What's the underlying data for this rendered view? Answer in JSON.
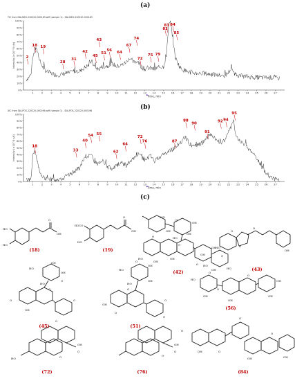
{
  "panel_letters": [
    "(a)",
    "(b)",
    "(c)"
  ],
  "chart_data": [
    {
      "panel": "(a)",
      "type": "line",
      "header": "TIC from IDA-NEG-220220-000183.wiff (sample 1) - IDA-NEG-220220-000183",
      "ylabel": "Intensity (×10^5 c/s)",
      "xlabel": "Time, min",
      "xlim": [
        0,
        28
      ],
      "ylim": [
        0,
        100
      ],
      "x_ticks": [
        "1",
        "2",
        "3",
        "4",
        "5",
        "6",
        "7",
        "8",
        "9",
        "10",
        "11",
        "12",
        "13",
        "14",
        "15",
        "16",
        "17",
        "18",
        "19",
        "20",
        "21",
        "22",
        "23",
        "24",
        "25",
        "26",
        "27"
      ],
      "y_ticks": [
        "0%",
        "10%",
        "20%",
        "30%",
        "40%",
        "50%",
        "60%",
        "70%",
        "80%",
        "90%",
        "100%"
      ],
      "baseline_trace": [
        [
          0.3,
          15
        ],
        [
          0.8,
          22
        ],
        [
          1.0,
          46
        ],
        [
          1.25,
          60
        ],
        [
          1.5,
          56
        ],
        [
          1.8,
          40
        ],
        [
          2.2,
          30
        ],
        [
          2.6,
          26
        ],
        [
          3.0,
          24
        ],
        [
          3.5,
          22
        ],
        [
          4.0,
          22
        ],
        [
          4.5,
          24
        ],
        [
          5.0,
          25
        ],
        [
          5.5,
          28
        ],
        [
          6.0,
          27
        ],
        [
          6.5,
          32
        ],
        [
          7.0,
          36
        ],
        [
          7.3,
          42
        ],
        [
          7.6,
          34
        ],
        [
          8.0,
          30
        ],
        [
          8.5,
          34
        ],
        [
          9.0,
          35
        ],
        [
          9.5,
          38
        ],
        [
          10.0,
          34
        ],
        [
          10.5,
          36
        ],
        [
          11.0,
          40
        ],
        [
          11.3,
          46
        ],
        [
          11.8,
          40
        ],
        [
          12.2,
          42
        ],
        [
          12.6,
          34
        ],
        [
          13.0,
          30
        ],
        [
          13.5,
          32
        ],
        [
          14.0,
          30
        ],
        [
          14.5,
          33
        ],
        [
          15.0,
          34
        ],
        [
          15.3,
          48
        ],
        [
          15.55,
          92
        ],
        [
          15.75,
          98
        ],
        [
          15.95,
          80
        ],
        [
          16.3,
          46
        ],
        [
          16.8,
          32
        ],
        [
          17.3,
          28
        ],
        [
          18.0,
          25
        ],
        [
          19.0,
          24
        ],
        [
          20.0,
          23
        ],
        [
          21.0,
          21
        ],
        [
          21.5,
          20
        ],
        [
          21.9,
          24
        ],
        [
          22.2,
          30
        ],
        [
          22.4,
          28
        ],
        [
          22.8,
          22
        ],
        [
          23.5,
          20
        ],
        [
          24.5,
          19
        ],
        [
          25.5,
          18
        ],
        [
          26.5,
          18
        ],
        [
          27.5,
          17
        ]
      ],
      "labelled_peaks": [
        {
          "label": "2",
          "x": 0.4,
          "y": 45
        },
        {
          "label": "18",
          "x": 1.2,
          "y": 62
        },
        {
          "label": "19",
          "x": 2.1,
          "y": 60
        },
        {
          "label": "28",
          "x": 4.2,
          "y": 38
        },
        {
          "label": "31",
          "x": 5.4,
          "y": 42
        },
        {
          "label": "42",
          "x": 6.6,
          "y": 53
        },
        {
          "label": "43",
          "x": 8.1,
          "y": 70
        },
        {
          "label": "45",
          "x": 7.7,
          "y": 47
        },
        {
          "label": "51",
          "x": 8.6,
          "y": 51
        },
        {
          "label": "56",
          "x": 9.2,
          "y": 55
        },
        {
          "label": "64",
          "x": 10.3,
          "y": 52
        },
        {
          "label": "67",
          "x": 11.3,
          "y": 62
        },
        {
          "label": "72",
          "x": 12.5,
          "y": 43
        },
        {
          "label": "74",
          "x": 12.1,
          "y": 72
        },
        {
          "label": "75",
          "x": 13.6,
          "y": 48
        },
        {
          "label": "79",
          "x": 14.4,
          "y": 49
        },
        {
          "label": "82",
          "x": 15.2,
          "y": 86
        },
        {
          "label": "83",
          "x": 15.35,
          "y": 91
        },
        {
          "label": "84",
          "x": 16.0,
          "y": 92
        },
        {
          "label": "85",
          "x": 16.4,
          "y": 80
        }
      ]
    },
    {
      "panel": "(b)",
      "type": "line",
      "header": "XIC from IDA-POS-220220-000196.wiff (sample 1) - IDA-POS-220220-000196",
      "ylabel": "Intensity (×10^5 c/s)",
      "xlabel": "Time, min",
      "xlim": [
        0,
        28
      ],
      "ylim": [
        0,
        100
      ],
      "x_ticks": [
        "1",
        "2",
        "3",
        "4",
        "5",
        "6",
        "7",
        "8",
        "9",
        "10",
        "11",
        "12",
        "13",
        "14",
        "15",
        "16",
        "17",
        "18",
        "19",
        "20",
        "21",
        "22",
        "23",
        "24",
        "25",
        "26",
        "27"
      ],
      "y_ticks": [
        "0%",
        "10%",
        "20%",
        "30%",
        "40%",
        "50%",
        "60%",
        "70%",
        "80%",
        "90%",
        "100%"
      ],
      "baseline_trace": [
        [
          0.3,
          2
        ],
        [
          0.8,
          4
        ],
        [
          1.0,
          38
        ],
        [
          1.2,
          46
        ],
        [
          1.5,
          28
        ],
        [
          1.9,
          8
        ],
        [
          2.5,
          3
        ],
        [
          3.0,
          2
        ],
        [
          3.5,
          3
        ],
        [
          4.0,
          4
        ],
        [
          4.5,
          7
        ],
        [
          5.0,
          10
        ],
        [
          5.5,
          16
        ],
        [
          6.0,
          20
        ],
        [
          6.4,
          30
        ],
        [
          6.8,
          38
        ],
        [
          7.2,
          40
        ],
        [
          7.6,
          30
        ],
        [
          8.0,
          26
        ],
        [
          8.5,
          30
        ],
        [
          9.0,
          22
        ],
        [
          9.5,
          20
        ],
        [
          10.0,
          24
        ],
        [
          10.5,
          28
        ],
        [
          11.0,
          24
        ],
        [
          11.5,
          30
        ],
        [
          12.0,
          36
        ],
        [
          12.4,
          42
        ],
        [
          12.8,
          30
        ],
        [
          13.2,
          34
        ],
        [
          13.6,
          38
        ],
        [
          14.0,
          30
        ],
        [
          14.5,
          36
        ],
        [
          15.0,
          40
        ],
        [
          15.5,
          44
        ],
        [
          16.0,
          48
        ],
        [
          16.5,
          55
        ],
        [
          17.0,
          58
        ],
        [
          17.4,
          66
        ],
        [
          17.8,
          56
        ],
        [
          18.3,
          52
        ],
        [
          18.7,
          54
        ],
        [
          19.2,
          58
        ],
        [
          19.6,
          64
        ],
        [
          20.0,
          70
        ],
        [
          20.4,
          66
        ],
        [
          20.8,
          60
        ],
        [
          21.2,
          58
        ],
        [
          21.6,
          62
        ],
        [
          22.0,
          72
        ],
        [
          22.3,
          84
        ],
        [
          22.5,
          94
        ],
        [
          22.7,
          72
        ],
        [
          23.0,
          62
        ],
        [
          23.5,
          58
        ],
        [
          24.0,
          50
        ],
        [
          24.5,
          44
        ],
        [
          25.0,
          36
        ],
        [
          25.5,
          22
        ],
        [
          26.0,
          12
        ],
        [
          26.5,
          6
        ],
        [
          27.0,
          4
        ],
        [
          27.5,
          3
        ]
      ],
      "labelled_peaks": [
        {
          "label": "18",
          "x": 1.2,
          "y": 50
        },
        {
          "label": "33",
          "x": 5.6,
          "y": 44
        },
        {
          "label": "40",
          "x": 6.6,
          "y": 58
        },
        {
          "label": "54",
          "x": 7.2,
          "y": 66
        },
        {
          "label": "55",
          "x": 8.1,
          "y": 68
        },
        {
          "label": "62",
          "x": 9.9,
          "y": 42
        },
        {
          "label": "64",
          "x": 10.9,
          "y": 53
        },
        {
          "label": "72",
          "x": 12.5,
          "y": 64
        },
        {
          "label": "76",
          "x": 13.0,
          "y": 57
        },
        {
          "label": "87",
          "x": 16.2,
          "y": 57
        },
        {
          "label": "88",
          "x": 17.4,
          "y": 88
        },
        {
          "label": "90",
          "x": 18.3,
          "y": 84
        },
        {
          "label": "91",
          "x": 19.7,
          "y": 71
        },
        {
          "label": "92",
          "x": 21.1,
          "y": 87
        },
        {
          "label": "94",
          "x": 21.7,
          "y": 89
        },
        {
          "label": "95",
          "x": 22.6,
          "y": 99
        }
      ]
    }
  ],
  "compounds": [
    {
      "id": "18",
      "label": "(18)"
    },
    {
      "id": "19",
      "label": "(19)"
    },
    {
      "id": "42",
      "label": "(42)"
    },
    {
      "id": "43",
      "label": "(43)"
    },
    {
      "id": "45",
      "label": "(45)"
    },
    {
      "id": "51",
      "label": "(51)"
    },
    {
      "id": "56",
      "label": "(56)"
    },
    {
      "id": "72",
      "label": "(72)"
    },
    {
      "id": "76",
      "label": "(76)"
    },
    {
      "id": "84",
      "label": "(84)"
    }
  ],
  "atom_labels": {
    "18": [
      "HO",
      "HO",
      "O",
      "OH"
    ],
    "19": [
      "H3CO",
      "HO",
      "O",
      "OH"
    ],
    "42": [
      "HO",
      "OH",
      "O",
      "OH",
      "HO",
      "OH",
      "O",
      "O",
      "OH",
      "OH",
      "HO",
      "OH",
      "O"
    ],
    "43": [
      "O",
      "O",
      "HO",
      "O",
      "O",
      "OH",
      "HO",
      "OH",
      "HO",
      "OH"
    ],
    "45": [
      "HO",
      "OH",
      "HO",
      "O",
      "OH",
      "O",
      "O",
      "OH",
      "O",
      "O"
    ],
    "51": [
      "HO",
      "OH",
      "HO",
      "OH",
      "O",
      "O",
      "OH",
      "O",
      "O",
      "O"
    ],
    "56": [
      "HO",
      "O",
      "OH",
      "O",
      "OH",
      "O",
      "OH",
      "OH"
    ],
    "72": [
      "HO",
      "O",
      "OH",
      "O"
    ],
    "76": [
      "O",
      "OH",
      "O"
    ],
    "84": [
      "O",
      "O",
      "OH",
      "OH",
      "O",
      "O",
      "OH"
    ]
  },
  "colors": {
    "trace": "#222222",
    "label": "#c00000",
    "axis": "#333333",
    "marker": "#6a3fb0"
  }
}
